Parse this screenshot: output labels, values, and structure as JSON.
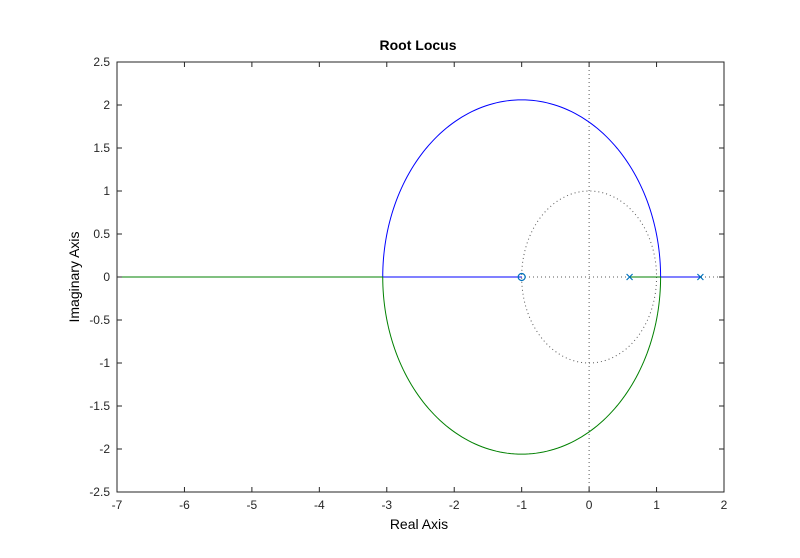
{
  "chart_data": {
    "type": "line",
    "title": "Root Locus",
    "xlabel": "Real Axis",
    "ylabel": "Imaginary Axis",
    "xlim": [
      -7,
      2
    ],
    "ylim": [
      -2.5,
      2.5
    ],
    "xticks": [
      -7,
      -6,
      -5,
      -4,
      -3,
      -2,
      -1,
      0,
      1,
      2
    ],
    "yticks": [
      -2.5,
      -2,
      -1.5,
      -1,
      -0.5,
      0,
      0.5,
      1,
      1.5,
      2,
      2.5
    ],
    "xtick_labels": [
      "-7",
      "-6",
      "-5",
      "-4",
      "-3",
      "-2",
      "-1",
      "0",
      "1",
      "2"
    ],
    "ytick_labels": [
      "-2.5",
      "-2",
      "-1.5",
      "-1",
      "-0.5",
      "0",
      "0.5",
      "1",
      "1.5",
      "2",
      "2.5"
    ],
    "grid": false,
    "reference_lines": {
      "unit_circle": {
        "center": [
          0,
          0
        ],
        "radius": 1,
        "style": "dotted",
        "color": "#595959"
      },
      "x_zero": {
        "style": "dotted",
        "color": "#595959"
      },
      "y_zero": {
        "style": "dotted",
        "color": "#595959"
      }
    },
    "circle_branches": {
      "center": [
        -1,
        0
      ],
      "radius": 2.06
    },
    "series": [
      {
        "color": "#0000ff",
        "segments": [
          {
            "kind": "line",
            "points": [
              [
                1.65,
                0
              ],
              [
                1.06,
                0
              ]
            ]
          },
          {
            "kind": "arc",
            "from_angle_deg": 0,
            "to_angle_deg": 180,
            "note_branch": "upper"
          },
          {
            "kind": "line",
            "points": [
              [
                -3.06,
                0
              ],
              [
                -1,
                0
              ]
            ]
          }
        ]
      },
      {
        "color": "#008000",
        "segments": [
          {
            "kind": "line",
            "points": [
              [
                0.6,
                0
              ],
              [
                1.06,
                0
              ]
            ]
          },
          {
            "kind": "arc",
            "from_angle_deg": 0,
            "to_angle_deg": -180,
            "note_branch": "lower"
          },
          {
            "kind": "line",
            "points": [
              [
                -3.06,
                0
              ],
              [
                -7,
                0
              ]
            ]
          }
        ]
      }
    ],
    "poles": [
      [
        0.6,
        0
      ],
      [
        1.65,
        0
      ]
    ],
    "zeros": [
      [
        -1,
        0
      ]
    ],
    "marker_color": "#0072bd"
  }
}
